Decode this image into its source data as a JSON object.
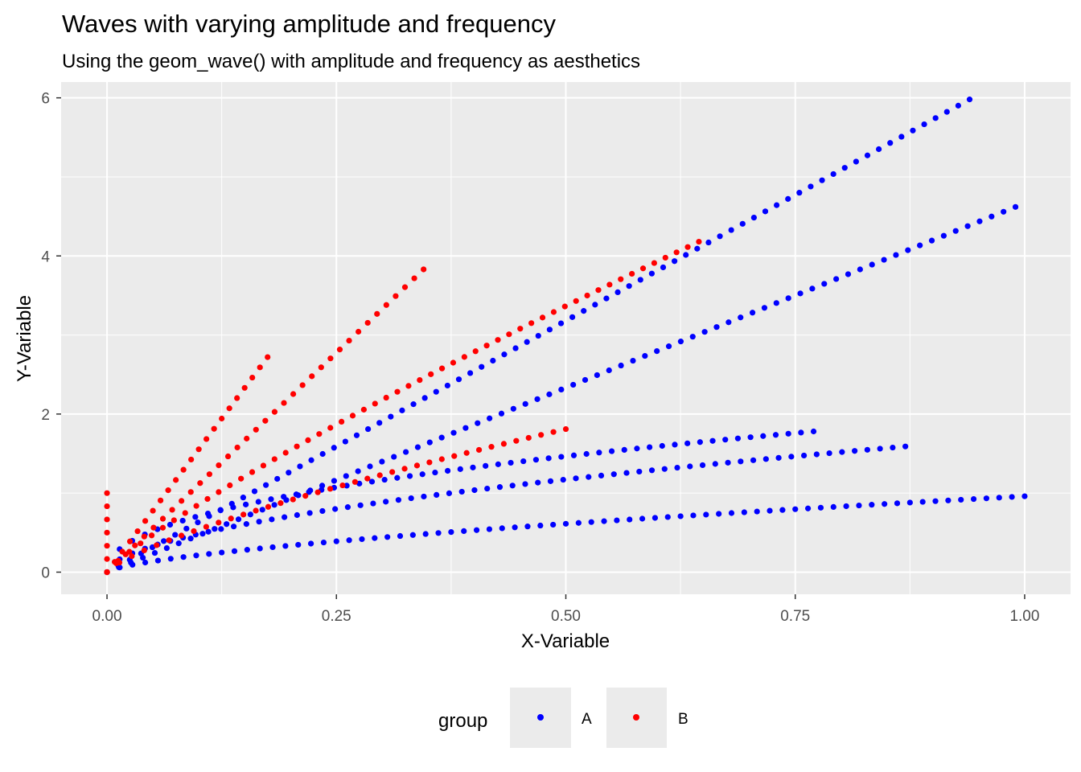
{
  "chart_data": {
    "type": "scatter",
    "title": "Waves with varying amplitude and frequency",
    "subtitle": "Using the geom_wave() with amplitude and frequency as aesthetics",
    "xlabel": "X-Variable",
    "ylabel": "Y-Variable",
    "xlim": [
      -0.05,
      1.05
    ],
    "ylim": [
      -0.28,
      6.2
    ],
    "x_ticks": [
      0.0,
      0.25,
      0.5,
      0.75,
      1.0
    ],
    "x_tick_labels": [
      "0.00",
      "0.25",
      "0.50",
      "0.75",
      "1.00"
    ],
    "y_ticks": [
      0,
      2,
      4,
      6
    ],
    "y_tick_labels": [
      "0",
      "2",
      "4",
      "6"
    ],
    "grid": true,
    "legend": {
      "title": "group",
      "position": "bottom",
      "entries": [
        {
          "label": "A",
          "color": "#0000ff"
        },
        {
          "label": "B",
          "color": "#ff0000"
        }
      ]
    },
    "series": [
      {
        "name": "A",
        "color": "#0000ff",
        "segments": [
          {
            "end": [
              0.94,
              5.98
            ],
            "curv": 0.0
          },
          {
            "end": [
              0.99,
              4.62
            ],
            "curv": 0.0
          },
          {
            "end": [
              0.77,
              1.78
            ],
            "curv": 0.55
          },
          {
            "end": [
              0.87,
              1.59
            ],
            "curv": 0.45
          },
          {
            "end": [
              1.0,
              0.96
            ],
            "curv": 0.35
          }
        ]
      },
      {
        "name": "B",
        "color": "#ff0000",
        "segments": [
          {
            "end": [
              0.175,
              2.72
            ],
            "curv": 0.0
          },
          {
            "end": [
              0.345,
              3.83
            ],
            "curv": 0.0
          },
          {
            "end": [
              0.645,
              4.18
            ],
            "curv": 0.15
          },
          {
            "end": [
              0.5,
              1.81
            ],
            "curv": 0.25
          },
          {
            "end": [
              0.0,
              1.0
            ],
            "curv": 0.0
          }
        ]
      }
    ]
  }
}
